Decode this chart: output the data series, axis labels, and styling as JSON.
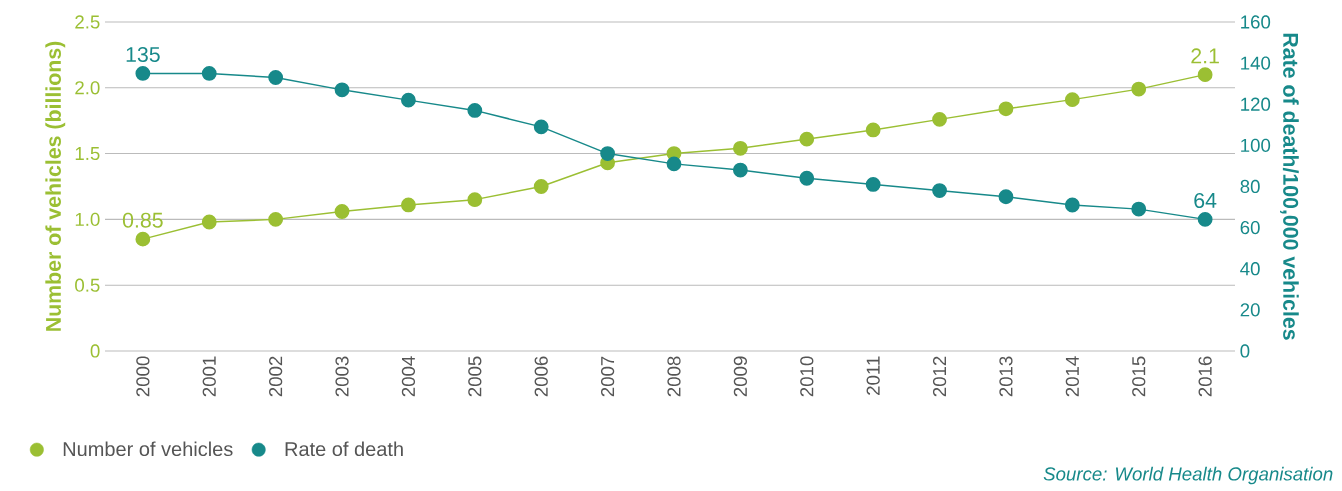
{
  "chart_data": {
    "type": "line",
    "ylabel": "Number of vehicles (billions)",
    "y2label": "Rate of death/100,000 vehicles",
    "categories": [
      "2000",
      "2001",
      "2002",
      "2003",
      "2004",
      "2005",
      "2006",
      "2007",
      "2008",
      "2009",
      "2010",
      "2011",
      "2012",
      "2013",
      "2014",
      "2015",
      "2016"
    ],
    "series": [
      {
        "name": "Number of vehicles",
        "color": "#9bbf33",
        "values": [
          0.85,
          0.98,
          1.0,
          1.06,
          1.11,
          1.15,
          1.25,
          1.43,
          1.5,
          1.54,
          1.61,
          1.68,
          1.76,
          1.84,
          1.91,
          1.99,
          2.1
        ],
        "value_labels": [
          "0.85",
          null,
          null,
          null,
          null,
          null,
          null,
          null,
          null,
          null,
          null,
          null,
          null,
          null,
          null,
          null,
          "2.1"
        ]
      },
      {
        "name": "Rate of death",
        "color": "#17898a",
        "axis": "y2",
        "values": [
          135,
          135,
          133,
          127,
          122,
          117,
          109,
          96,
          91,
          88,
          84,
          81,
          78,
          75,
          71,
          69,
          64
        ],
        "value_labels": [
          "135",
          null,
          null,
          null,
          null,
          null,
          null,
          null,
          null,
          null,
          null,
          null,
          null,
          null,
          null,
          null,
          "64"
        ]
      }
    ],
    "ylim": [
      0,
      2.5
    ],
    "yticks": [
      0,
      0.5,
      {
        "value": 1,
        "label": "1.0"
      },
      1.5,
      {
        "value": 2,
        "label": "2.0"
      },
      2.5
    ],
    "y2lim": [
      0,
      160
    ],
    "y2ticks": [
      0,
      20,
      40,
      60,
      80,
      100,
      120,
      140,
      160
    ],
    "grid": "y",
    "legend": "bottom left",
    "marker": "circle",
    "line_style": "solid",
    "annotations": [
      "Source: World Health Organisation"
    ]
  }
}
